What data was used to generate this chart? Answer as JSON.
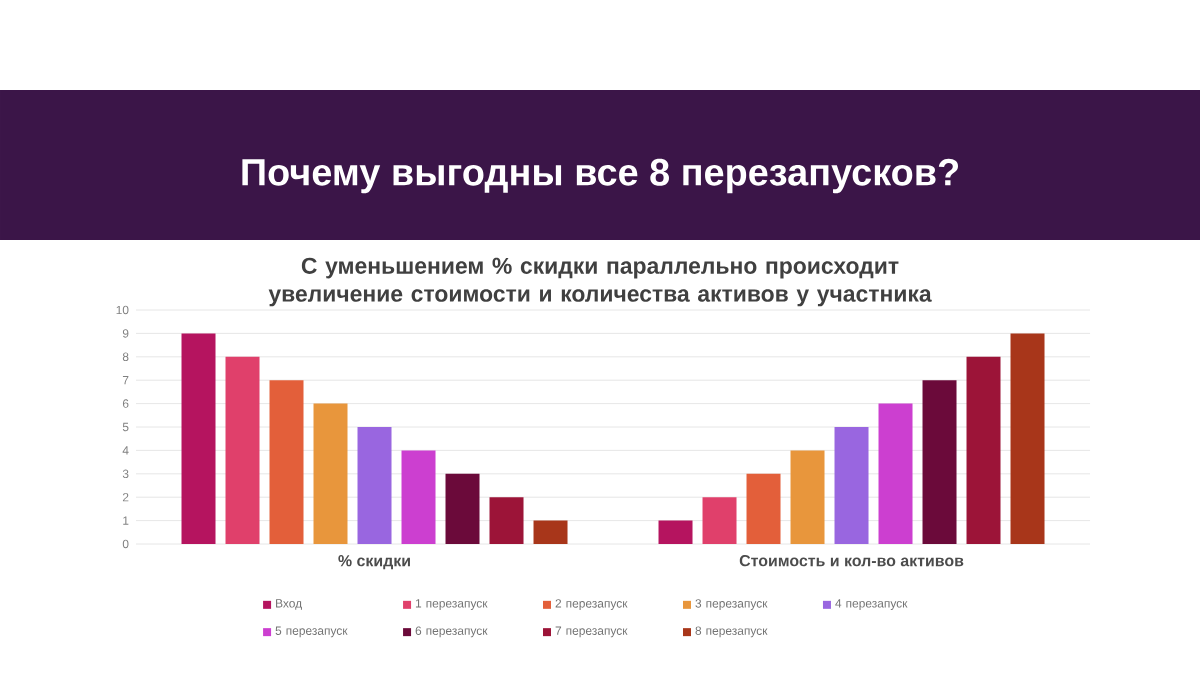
{
  "chart_data": {
    "type": "bar",
    "title": "Почему выгодны все 8 перезапусков?",
    "subtitle": "С уменьшением % скидки параллельно происходит увеличение стоимости и количества активов у участника",
    "categories": [
      "% скидки",
      "Стоимость и кол-во активов"
    ],
    "series": [
      {
        "name": "Вход",
        "color": "#b5145f",
        "values": [
          9,
          1
        ]
      },
      {
        "name": "1 перезапуск",
        "color": "#e0406b",
        "values": [
          8,
          2
        ]
      },
      {
        "name": "2 перезапуск",
        "color": "#e35f3a",
        "values": [
          7,
          3
        ]
      },
      {
        "name": "3 перезапуск",
        "color": "#e8963c",
        "values": [
          6,
          4
        ]
      },
      {
        "name": "4 перезапуск",
        "color": "#9966e0",
        "values": [
          5,
          5
        ]
      },
      {
        "name": "5 перезапуск",
        "color": "#cc3fd0",
        "values": [
          4,
          6
        ]
      },
      {
        "name": "6 перезапуск",
        "color": "#6b0a3a",
        "values": [
          3,
          7
        ]
      },
      {
        "name": "7 перезапуск",
        "color": "#9c1438",
        "values": [
          2,
          8
        ]
      },
      {
        "name": "8 перезапуск",
        "color": "#a8361a",
        "values": [
          1,
          9
        ]
      }
    ],
    "ylim": [
      0,
      10
    ],
    "yticks": [
      0,
      1,
      2,
      3,
      4,
      5,
      6,
      7,
      8,
      9,
      10
    ],
    "grid": "y",
    "legend": "bottom"
  }
}
